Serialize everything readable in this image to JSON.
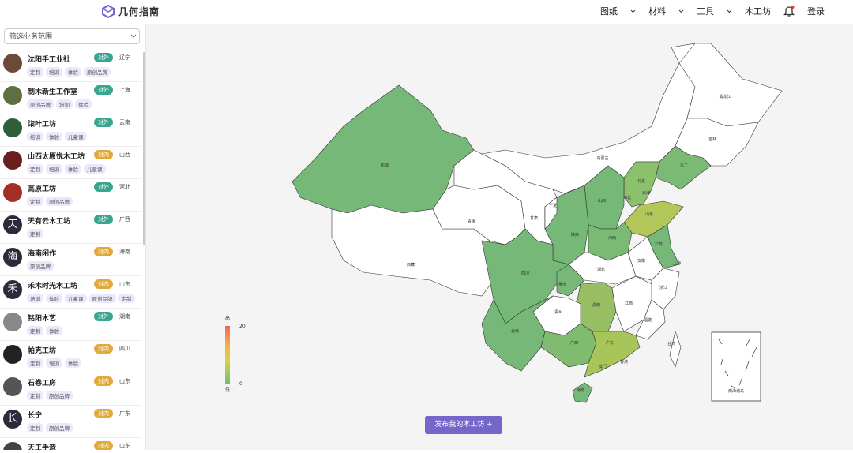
{
  "header": {
    "brand": "几何指南",
    "nav": [
      "图纸",
      "材料",
      "工具",
      "木工坊"
    ],
    "login": "登录"
  },
  "sidebar": {
    "filter_placeholder": "筛选业务范围",
    "items": [
      {
        "name": "沈阳手工业社",
        "badge": "对外",
        "badge_color": "#3aa58f",
        "province": "辽宁",
        "tags": [
          "定制",
          "培训",
          "体验",
          "原创品牌"
        ]
      },
      {
        "name": "制木新生工作室",
        "badge": "对外",
        "badge_color": "#3aa58f",
        "province": "上海",
        "tags": [
          "原创品牌",
          "培训",
          "体验"
        ]
      },
      {
        "name": "柒叶工坊",
        "badge": "对外",
        "badge_color": "#3aa58f",
        "province": "云南",
        "tags": [
          "培训",
          "体验",
          "儿童课"
        ]
      },
      {
        "name": "山西太原悦木工坊",
        "badge": "对内",
        "badge_color": "#e0a93a",
        "province": "山西",
        "tags": [
          "定制",
          "培训",
          "体验",
          "儿童课"
        ]
      },
      {
        "name": "高原工坊",
        "badge": "对外",
        "badge_color": "#3aa58f",
        "province": "河北",
        "tags": [
          "定制",
          "原创品牌"
        ]
      },
      {
        "name": "天有云木工坊",
        "badge": "对外",
        "badge_color": "#3aa58f",
        "province": "广西",
        "tags": [
          "定制"
        ],
        "avatar": "天"
      },
      {
        "name": "海南闲作",
        "badge": "对内",
        "badge_color": "#e0a93a",
        "province": "海南",
        "tags": [
          "原创品牌"
        ],
        "avatar": "海"
      },
      {
        "name": "禾木时光木工坊",
        "badge": "对内",
        "badge_color": "#e0a93a",
        "province": "山东",
        "tags": [
          "培训",
          "体验",
          "儿童课",
          "原创品牌",
          "定制"
        ],
        "avatar": "禾"
      },
      {
        "name": "铭阳木艺",
        "badge": "对外",
        "badge_color": "#3aa58f",
        "province": "湖南",
        "tags": [
          "定制",
          "体验"
        ]
      },
      {
        "name": "帕克工坊",
        "badge": "对内",
        "badge_color": "#e0a93a",
        "province": "四川",
        "tags": [
          "定制",
          "培训",
          "体验"
        ]
      },
      {
        "name": "石卷工房",
        "badge": "对内",
        "badge_color": "#e0a93a",
        "province": "山东",
        "tags": [
          "定制",
          "原创品牌"
        ]
      },
      {
        "name": "长宁",
        "badge": "对内",
        "badge_color": "#e0a93a",
        "province": "广东",
        "tags": [
          "定制",
          "原创品牌"
        ],
        "avatar": "长"
      },
      {
        "name": "天工手造",
        "badge": "对内",
        "badge_color": "#e0a93a",
        "province": "山东",
        "tags": []
      }
    ]
  },
  "map": {
    "regions": [
      {
        "label": "新疆",
        "color": "#76b877"
      },
      {
        "label": "西藏",
        "color": "#ffffff"
      },
      {
        "label": "青海",
        "color": "#ffffff"
      },
      {
        "label": "甘肃",
        "color": "#ffffff"
      },
      {
        "label": "内蒙古",
        "color": "#ffffff"
      },
      {
        "label": "黑龙江",
        "color": "#ffffff"
      },
      {
        "label": "吉林",
        "color": "#ffffff"
      },
      {
        "label": "辽宁",
        "color": "#7aba74"
      },
      {
        "label": "河北",
        "color": "#8cc16c"
      },
      {
        "label": "山西",
        "color": "#76b877"
      },
      {
        "label": "陕西",
        "color": "#76b877"
      },
      {
        "label": "宁夏",
        "color": "#ffffff"
      },
      {
        "label": "山东",
        "color": "#b3c65a"
      },
      {
        "label": "河南",
        "color": "#7aba74"
      },
      {
        "label": "江苏",
        "color": "#76b877"
      },
      {
        "label": "安徽",
        "color": "#ffffff"
      },
      {
        "label": "湖北",
        "color": "#ffffff"
      },
      {
        "label": "四川",
        "color": "#76b877"
      },
      {
        "label": "重庆",
        "color": "#76b877"
      },
      {
        "label": "浙江",
        "color": "#ffffff"
      },
      {
        "label": "湖南",
        "color": "#98be64"
      },
      {
        "label": "江西",
        "color": "#ffffff"
      },
      {
        "label": "贵州",
        "color": "#ffffff"
      },
      {
        "label": "福建",
        "color": "#ffffff"
      },
      {
        "label": "云南",
        "color": "#76b877"
      },
      {
        "label": "广西",
        "color": "#80bc70"
      },
      {
        "label": "广东",
        "color": "#a8c55a"
      },
      {
        "label": "台湾",
        "color": "#ffffff"
      },
      {
        "label": "海南",
        "color": "#76b877"
      }
    ],
    "city_labels": [
      "北京",
      "天津",
      "上海",
      "香港",
      "澳门"
    ],
    "inset_label": "南海诸岛",
    "legend": {
      "high": "高",
      "low": "低",
      "max": 20,
      "min": 0
    }
  },
  "publish_button": "发布我的木工坊 +"
}
